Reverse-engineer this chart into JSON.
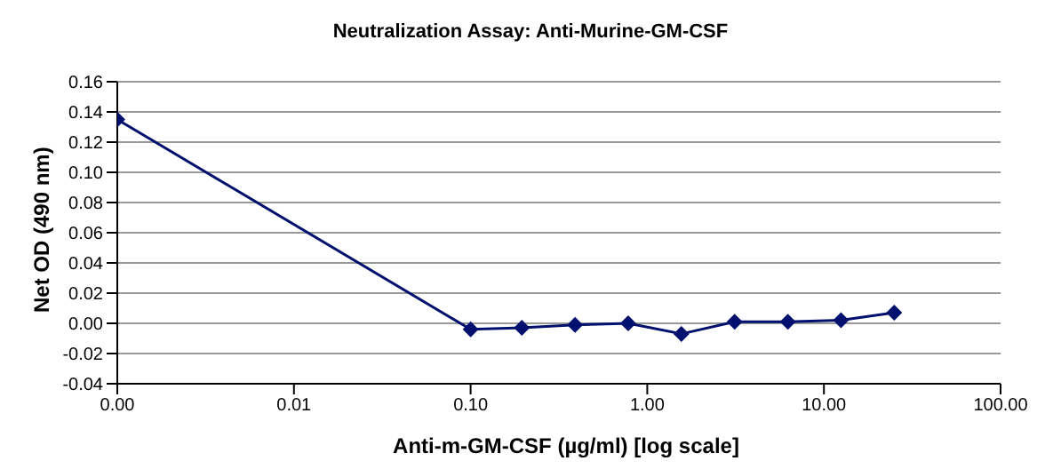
{
  "chart_data": {
    "type": "line",
    "title": "Neutralization Assay: Anti-Murine-GM-CSF",
    "xlabel": "Anti-m-GM-CSF  (µg/ml) [log scale]",
    "ylabel": "Net OD (490 nm)",
    "x": [
      0.001,
      0.1,
      0.195,
      0.39,
      0.78,
      1.56,
      3.125,
      6.25,
      12.5,
      25
    ],
    "series": [
      {
        "color": "#00106e",
        "values": [
          0.135,
          -0.004,
          -0.003,
          -0.001,
          0.0,
          -0.007,
          0.001,
          0.001,
          0.002,
          0.007
        ]
      }
    ],
    "log": "x",
    "xlim": [
      0.001,
      100
    ],
    "xticks": [
      {
        "value": 0.001,
        "label": "0.00"
      },
      {
        "value": 0.01,
        "label": "0.01"
      },
      {
        "value": 0.1,
        "label": "0.10"
      },
      {
        "value": 1,
        "label": "1.00"
      },
      {
        "value": 10,
        "label": "10.00"
      },
      {
        "value": 100,
        "label": "100.00"
      }
    ],
    "ylim": [
      -0.04,
      0.16
    ],
    "yticks": [
      {
        "value": -0.04,
        "label": "-0.04"
      },
      {
        "value": -0.02,
        "label": "-0.02"
      },
      {
        "value": 0,
        "label": "0.00"
      },
      {
        "value": 0.02,
        "label": "0.02"
      },
      {
        "value": 0.04,
        "label": "0.04"
      },
      {
        "value": 0.06,
        "label": "0.06"
      },
      {
        "value": 0.08,
        "label": "0.08"
      },
      {
        "value": 0.1,
        "label": "0.10"
      },
      {
        "value": 0.12,
        "label": "0.12"
      },
      {
        "value": 0.14,
        "label": "0.14"
      },
      {
        "value": 0.16,
        "label": "0.16"
      }
    ],
    "grid": "y",
    "marker": "diamond",
    "line_style": "solid",
    "legend": false
  }
}
